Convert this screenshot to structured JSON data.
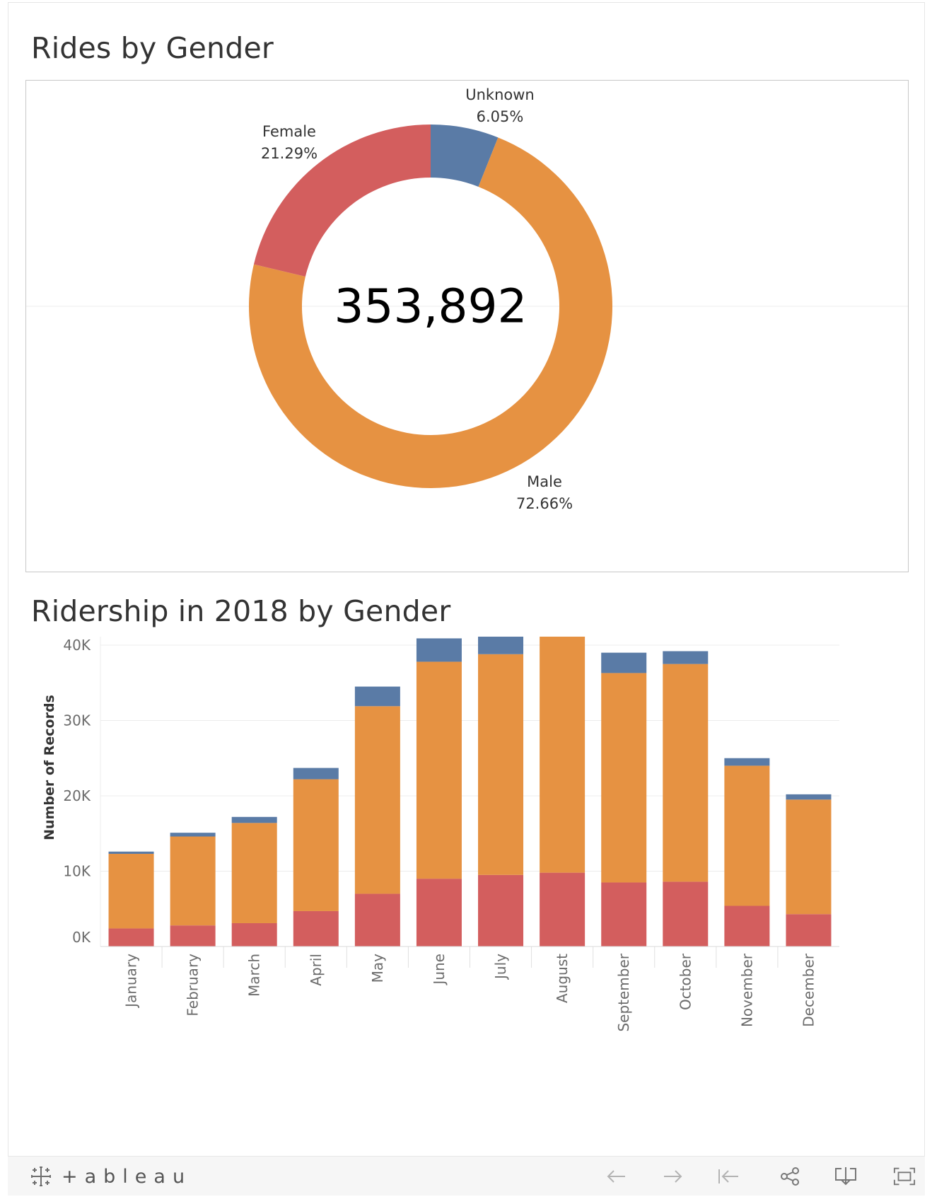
{
  "donut": {
    "title": "Rides by Gender",
    "total_label": "353,892"
  },
  "bar": {
    "title": "Ridership in 2018 by Gender"
  },
  "branding": {
    "logo_text": "+ableau"
  },
  "toolbar": {
    "buttons": [
      "undo-icon",
      "redo-icon",
      "revert-icon",
      "share-icon",
      "download-icon",
      "fullscreen-icon"
    ]
  },
  "colors": {
    "Female": "#d35e5e",
    "Male": "#e69242",
    "Unknown": "#5a7ba6",
    "gridline": "#ececec",
    "axis_text": "#6b6b6b"
  },
  "chart_data": [
    {
      "type": "pie",
      "title": "Rides by Gender",
      "center_value": 353892,
      "center_label": "353,892",
      "slices": [
        {
          "name": "Unknown",
          "percent": 6.05,
          "label": "6.05%"
        },
        {
          "name": "Male",
          "percent": 72.66,
          "label": "72.66%"
        },
        {
          "name": "Female",
          "percent": 21.29,
          "label": "21.29%"
        }
      ]
    },
    {
      "type": "bar",
      "stacked": true,
      "title": "Ridership in 2018 by Gender",
      "xlabel": "",
      "ylabel": "Number of Records",
      "ylim": [
        0,
        46000
      ],
      "yticks": [
        0,
        10000,
        20000,
        30000,
        40000
      ],
      "ytick_labels": [
        "0K",
        "10K",
        "20K",
        "30K",
        "40K"
      ],
      "grid": true,
      "categories": [
        "January",
        "February",
        "March",
        "April",
        "May",
        "June",
        "July",
        "August",
        "September",
        "October",
        "November",
        "December"
      ],
      "series": [
        {
          "name": "Female",
          "values": [
            2400,
            2800,
            3100,
            4700,
            7000,
            9000,
            9500,
            9800,
            8500,
            8600,
            5400,
            4300
          ]
        },
        {
          "name": "Male",
          "values": [
            9900,
            11800,
            13300,
            17500,
            24900,
            28800,
            29300,
            31600,
            27800,
            28900,
            18600,
            15200
          ]
        },
        {
          "name": "Unknown",
          "values": [
            300,
            500,
            800,
            1500,
            2600,
            3100,
            3400,
            2900,
            2700,
            1700,
            1000,
            700
          ]
        }
      ]
    }
  ]
}
